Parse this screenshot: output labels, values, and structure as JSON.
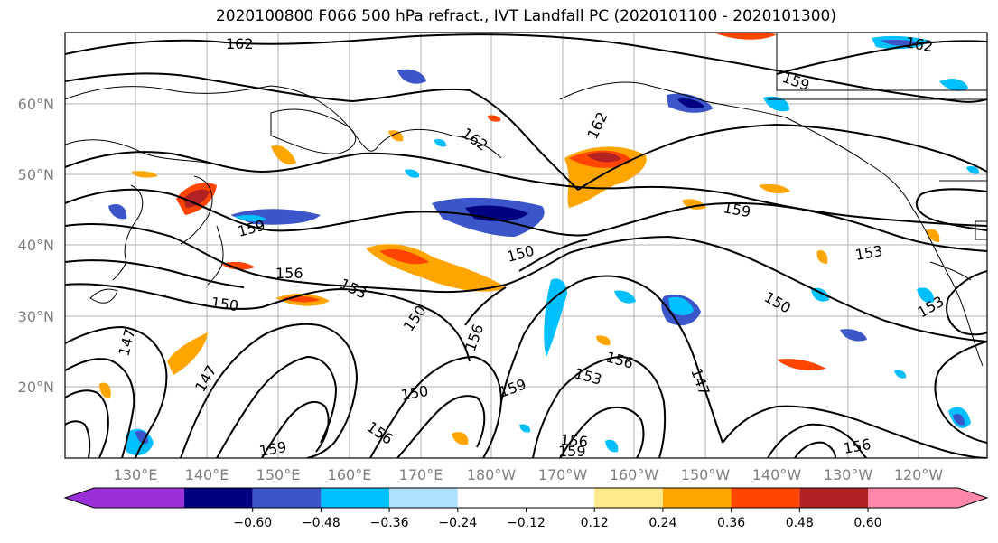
{
  "title": "2020100800 F066 500 hPa refract., IVT Landfall PC (2020101100 - 2020101300)",
  "lat_labels": [
    "60°N",
    "50°N",
    "40°N",
    "30°N",
    "20°N"
  ],
  "lon_labels": [
    "130°E",
    "140°E",
    "150°E",
    "160°E",
    "170°E",
    "180°W",
    "170°W",
    "160°W",
    "150°W",
    "140°W",
    "130°W",
    "120°W"
  ],
  "colorbar": {
    "colors": [
      "#9b30d9",
      "#000080",
      "#3a56c9",
      "#00bfff",
      "#afe1ff",
      "#ffffff",
      "#ffffff",
      "#ffe98a",
      "#ffa500",
      "#ff4500",
      "#b22222",
      "#ff88aa"
    ],
    "tick_labels": [
      "−0.60",
      "−0.48",
      "−0.36",
      "−0.24",
      "−0.12",
      "0.12",
      "0.24",
      "0.36",
      "0.48",
      "0.60"
    ]
  },
  "contour_labels": [
    "162",
    "162",
    "162",
    "159",
    "159",
    "159",
    "159",
    "156",
    "156",
    "156",
    "156",
    "153",
    "153",
    "153",
    "153",
    "150",
    "150",
    "150",
    "150",
    "150",
    "147",
    "147",
    "147",
    "159",
    "156",
    "162",
    "159",
    "156"
  ]
}
